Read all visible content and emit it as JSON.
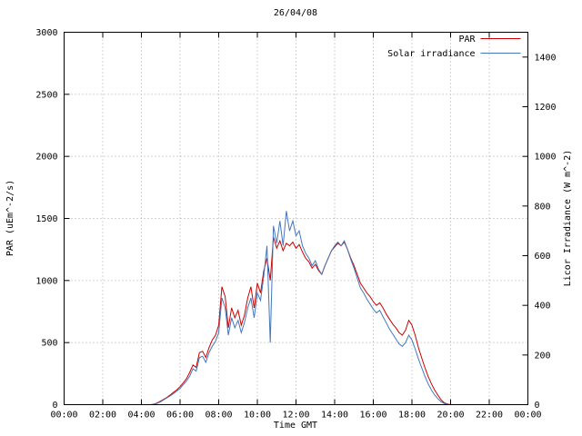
{
  "chart_data": {
    "type": "line",
    "title": "26/04/08",
    "xlabel": "Time GMT",
    "ylabel_left": "PAR (uEm^-2/s)",
    "ylabel_right": "Licor Irradiance (W m^-2)",
    "y_left_range": [
      0,
      3000
    ],
    "y_right_range": [
      0,
      1500
    ],
    "x_range_hours": [
      0,
      24
    ],
    "grid": true,
    "legend_position": "top-right",
    "x_ticks_hours": [
      0,
      2,
      4,
      6,
      8,
      10,
      12,
      14,
      16,
      18,
      20,
      22,
      24
    ],
    "x_tick_labels": [
      "00:00",
      "02:00",
      "04:00",
      "06:00",
      "08:00",
      "10:00",
      "12:00",
      "14:00",
      "16:00",
      "18:00",
      "20:00",
      "22:00",
      "00:00"
    ],
    "y_left_ticks": [
      0,
      500,
      1000,
      1500,
      2000,
      2500,
      3000
    ],
    "y_right_ticks": [
      0,
      200,
      400,
      600,
      800,
      1000,
      1200,
      1400
    ],
    "x_hours": [
      0.0,
      4.5,
      4.667,
      4.833,
      5.0,
      5.167,
      5.333,
      5.5,
      5.667,
      5.833,
      6.0,
      6.167,
      6.333,
      6.5,
      6.667,
      6.833,
      7.0,
      7.167,
      7.333,
      7.5,
      7.667,
      7.833,
      8.0,
      8.167,
      8.333,
      8.5,
      8.667,
      8.833,
      9.0,
      9.167,
      9.333,
      9.5,
      9.667,
      9.833,
      10.0,
      10.167,
      10.333,
      10.5,
      10.667,
      10.833,
      11.0,
      11.167,
      11.333,
      11.5,
      11.667,
      11.833,
      12.0,
      12.167,
      12.333,
      12.5,
      12.667,
      12.833,
      13.0,
      13.167,
      13.333,
      13.5,
      13.667,
      13.833,
      14.0,
      14.167,
      14.333,
      14.5,
      14.667,
      14.833,
      15.0,
      15.167,
      15.333,
      15.5,
      15.667,
      15.833,
      16.0,
      16.167,
      16.333,
      16.5,
      16.667,
      16.833,
      17.0,
      17.167,
      17.333,
      17.5,
      17.667,
      17.833,
      18.0,
      18.167,
      18.333,
      18.5,
      18.667,
      18.833,
      19.0,
      19.167,
      19.333,
      19.5,
      19.667,
      19.833,
      20.0,
      24.0
    ],
    "series": [
      {
        "name": "PAR",
        "axis": "left",
        "color": "#cc0000",
        "values": [
          0,
          0,
          5,
          15,
          30,
          45,
          60,
          80,
          100,
          120,
          145,
          175,
          210,
          260,
          320,
          300,
          420,
          430,
          380,
          460,
          520,
          560,
          640,
          950,
          870,
          620,
          780,
          700,
          760,
          640,
          720,
          860,
          950,
          780,
          980,
          900,
          1080,
          1180,
          1000,
          1350,
          1260,
          1320,
          1240,
          1300,
          1280,
          1310,
          1260,
          1290,
          1230,
          1180,
          1150,
          1100,
          1130,
          1080,
          1050,
          1120,
          1180,
          1240,
          1270,
          1300,
          1280,
          1310,
          1250,
          1180,
          1120,
          1050,
          980,
          940,
          900,
          870,
          830,
          800,
          820,
          780,
          730,
          690,
          650,
          620,
          580,
          560,
          600,
          680,
          640,
          560,
          460,
          380,
          300,
          230,
          170,
          120,
          80,
          40,
          15,
          5,
          0,
          0
        ]
      },
      {
        "name": "Solar irradiance",
        "axis": "right",
        "color": "#4477bb",
        "values": [
          0,
          0,
          2,
          6,
          12,
          20,
          28,
          36,
          45,
          55,
          65,
          80,
          95,
          115,
          145,
          135,
          190,
          195,
          170,
          210,
          235,
          255,
          290,
          430,
          390,
          280,
          350,
          310,
          340,
          290,
          330,
          390,
          430,
          350,
          450,
          420,
          520,
          640,
          250,
          720,
          650,
          740,
          640,
          780,
          700,
          740,
          680,
          700,
          640,
          610,
          590,
          560,
          580,
          545,
          525,
          560,
          590,
          620,
          640,
          655,
          640,
          660,
          625,
          585,
          550,
          510,
          470,
          450,
          425,
          405,
          385,
          370,
          380,
          355,
          330,
          305,
          285,
          265,
          245,
          235,
          250,
          280,
          260,
          225,
          185,
          150,
          115,
          85,
          60,
          40,
          25,
          12,
          5,
          1,
          0,
          0
        ]
      }
    ],
    "style": {
      "grid_color": "#aaaaaa",
      "border_color": "#000000",
      "background": "#ffffff"
    }
  }
}
